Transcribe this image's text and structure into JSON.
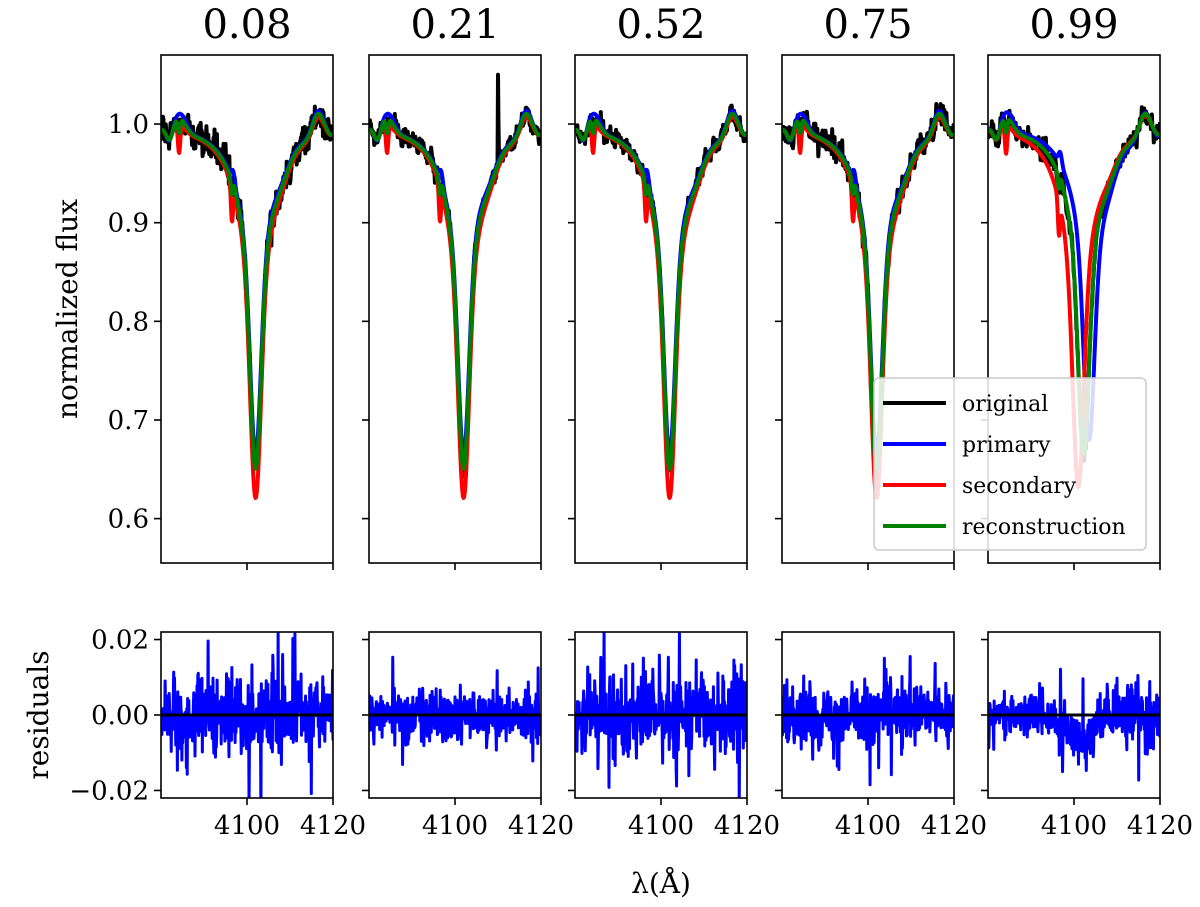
{
  "chart_data": {
    "type": "line",
    "panels": [
      {
        "phase": "0.08",
        "primary_center": 4102.0,
        "secondary_center": 4102.0,
        "recon_min": 0.655,
        "primary_min": 0.665,
        "secondary_min": 0.63,
        "residual_amp": 0.018
      },
      {
        "phase": "0.21",
        "primary_center": 4102.0,
        "secondary_center": 4102.0,
        "recon_min": 0.655,
        "primary_min": 0.665,
        "secondary_min": 0.63,
        "residual_amp": 0.012
      },
      {
        "phase": "0.52",
        "primary_center": 4102.0,
        "secondary_center": 4102.0,
        "recon_min": 0.655,
        "primary_min": 0.665,
        "secondary_min": 0.63,
        "residual_amp": 0.02
      },
      {
        "phase": "0.75",
        "primary_center": 4102.0,
        "secondary_center": 4102.0,
        "recon_min": 0.655,
        "primary_min": 0.665,
        "secondary_min": 0.63,
        "residual_amp": 0.014
      },
      {
        "phase": "0.99",
        "primary_center": 4103.5,
        "secondary_center": 4101.0,
        "recon_min": 0.67,
        "primary_min": 0.68,
        "secondary_min": 0.64,
        "residual_amp": 0.012
      }
    ],
    "top_y_ticks": [
      "1.0",
      "0.9",
      "0.8",
      "0.7",
      "0.6"
    ],
    "top_y_values": [
      1.0,
      0.9,
      0.8,
      0.7,
      0.6
    ],
    "top_ylim": [
      0.555,
      1.07
    ],
    "bottom_y_ticks": [
      "0.02",
      "0.00",
      "−0.02"
    ],
    "bottom_y_values": [
      0.02,
      0.0,
      -0.02
    ],
    "bottom_ylim": [
      -0.022,
      0.022
    ],
    "x_ticks": [
      "4100",
      "4120"
    ],
    "x_values": [
      4100,
      4120
    ],
    "xlim": [
      4080,
      4120
    ],
    "ylabel_top": "normalized flux",
    "ylabel_bottom": "residuals",
    "xlabel": "λ(Å)",
    "series": [
      {
        "name": "original",
        "color": "#000000"
      },
      {
        "name": "primary",
        "color": "#0000ff"
      },
      {
        "name": "secondary",
        "color": "#ff0000"
      },
      {
        "name": "reconstruction",
        "color": "#008000"
      }
    ],
    "legend_location": "lower-right of panel 4"
  }
}
